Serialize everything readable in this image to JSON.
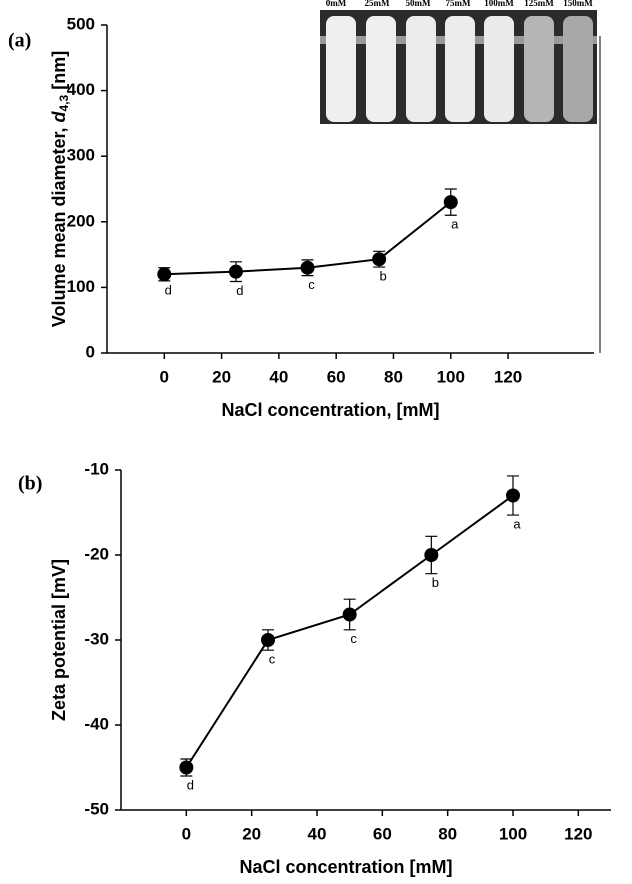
{
  "chart_data": [
    {
      "type": "line",
      "panel": "(a)",
      "xlabel": "NaCl concentration, [mM]",
      "ylabel": {
        "text": "Volume mean diameter, ",
        "var": "d",
        "sub": "4,3",
        "unit": " [nm]"
      },
      "x": [
        0,
        25,
        50,
        75,
        100
      ],
      "values": [
        120,
        124,
        130,
        143,
        230
      ],
      "errors": [
        10,
        15,
        12,
        12,
        20
      ],
      "annotations": [
        "d",
        "d",
        "c",
        "b",
        "a"
      ],
      "color": "#000000",
      "xlim": [
        -20,
        150
      ],
      "xticks": [
        0,
        20,
        40,
        60,
        80,
        100,
        120
      ],
      "ylim": [
        0,
        500
      ],
      "yticks": [
        0,
        100,
        200,
        300,
        400,
        500
      ],
      "inset_labels": [
        "0mM",
        "25mM",
        "50mM",
        "75mM",
        "100mM",
        "125mM",
        "150mM"
      ]
    },
    {
      "type": "line",
      "panel": "(b)",
      "xlabel": "NaCl concentration [mM]",
      "ylabel": {
        "text": "Zeta potential [mV]"
      },
      "x": [
        0,
        25,
        50,
        75,
        100
      ],
      "values": [
        -45,
        -30,
        -27,
        -20,
        -13
      ],
      "errors": [
        1,
        1.2,
        1.8,
        2.2,
        2.3
      ],
      "annotations": [
        "d",
        "c",
        "c",
        "b",
        "a"
      ],
      "color": "#000000",
      "xlim": [
        -20,
        130
      ],
      "xticks": [
        0,
        20,
        40,
        60,
        80,
        100,
        120
      ],
      "ylim": [
        -50,
        -10
      ],
      "yticks": [
        -50,
        -40,
        -30,
        -20,
        -10
      ]
    }
  ]
}
